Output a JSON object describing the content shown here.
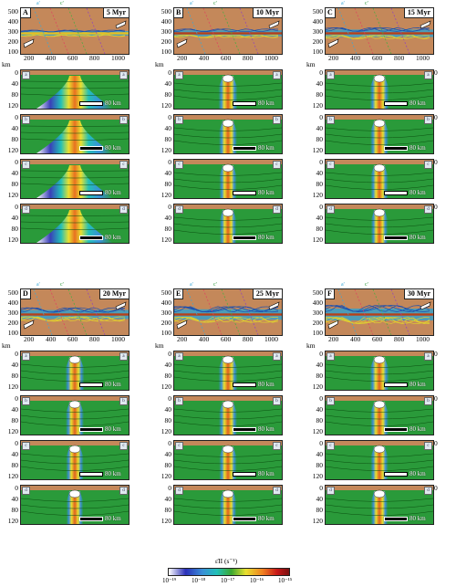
{
  "columns": [
    {
      "letter": "A",
      "time": "5 Myr",
      "ring": "5"
    },
    {
      "letter": "B",
      "time": "10 Myr",
      "ring": "10"
    },
    {
      "letter": "C",
      "time": "15 Myr",
      "ring": "15"
    },
    {
      "letter": "D",
      "time": "20 Myr",
      "ring": "20"
    },
    {
      "letter": "E",
      "time": "25 Myr",
      "ring": "25"
    },
    {
      "letter": "F",
      "time": "30 Myr",
      "ring": "30"
    }
  ],
  "plan_yticks": [
    "500",
    "400",
    "300",
    "200",
    "100"
  ],
  "plan_xticks": [
    "200",
    "400",
    "600",
    "800",
    "1000"
  ],
  "km_label": "km",
  "section_yticks": [
    "0",
    "40",
    "80",
    "120"
  ],
  "section_labels": [
    "a",
    "b",
    "c",
    "d"
  ],
  "scale_label": "80 km",
  "profile_labels": [
    "a'",
    "c'"
  ],
  "colorbar": {
    "title": "ε̇II (s⁻¹)",
    "ticks": [
      "10⁻¹⁹",
      "10⁻¹⁸",
      "10⁻¹⁷",
      "10⁻¹⁶",
      "10⁻¹⁵"
    ]
  },
  "colors": {
    "crust": "#c4885a",
    "mantle": "#2a9a3a",
    "mantle_deep": "#1f8a30",
    "sky": "#ffffff"
  }
}
